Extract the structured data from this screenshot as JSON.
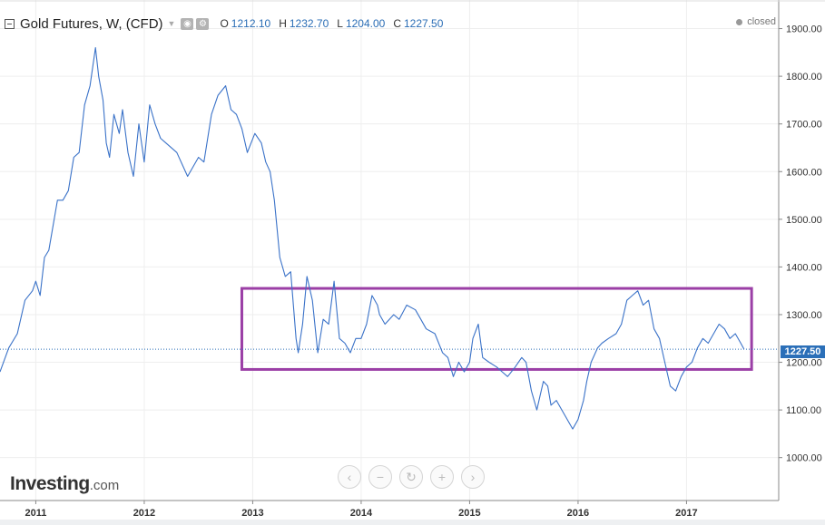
{
  "legend": {
    "title": "Gold Futures, W, (CFD)",
    "o_label": "O",
    "o_value": "1212.10",
    "h_label": "H",
    "h_value": "1232.70",
    "l_label": "L",
    "l_value": "1204.00",
    "c_label": "C",
    "c_value": "1227.50"
  },
  "status": "closed",
  "last_price_label": "1227.50",
  "branding": {
    "name": "Investing",
    "suffix": ".com"
  },
  "nav_icons": [
    "chevron-left-icon",
    "zoom-out-icon",
    "reset-icon",
    "zoom-in-icon",
    "chevron-right-icon"
  ],
  "colors": {
    "line": "#3a72c8",
    "price_tag": "#2b6fb8",
    "highlight_box": "#9b3fa6",
    "grid": "#eeeeee"
  },
  "chart_data": {
    "type": "line",
    "title": "Gold Futures, W, (CFD)",
    "xlabel": "",
    "ylabel": "",
    "ylim": [
      910,
      1960
    ],
    "xlim": [
      2010.67,
      2017.85
    ],
    "y_ticks": [
      "1000.00",
      "1100.00",
      "1200.00",
      "1300.00",
      "1400.00",
      "1500.00",
      "1600.00",
      "1700.00",
      "1800.00",
      "1900.00"
    ],
    "x_ticks": [
      "2011",
      "2012",
      "2013",
      "2014",
      "2015",
      "2016",
      "2017"
    ],
    "grid": true,
    "last_value": 1227.5,
    "highlight_range": {
      "x": [
        2012.9,
        2017.6
      ],
      "y": [
        1185,
        1355
      ]
    },
    "series": [
      {
        "x": [
          2010.67,
          2010.75,
          2010.83,
          2010.9,
          2010.97,
          2011.0,
          2011.04,
          2011.08,
          2011.12,
          2011.17,
          2011.2,
          2011.25,
          2011.3,
          2011.35,
          2011.4,
          2011.45,
          2011.5,
          2011.55,
          2011.58,
          2011.62,
          2011.65,
          2011.68,
          2011.72,
          2011.77,
          2011.8,
          2011.85,
          2011.9,
          2011.95,
          2012.0,
          2012.05,
          2012.1,
          2012.15,
          2012.2,
          2012.3,
          2012.4,
          2012.5,
          2012.55,
          2012.62,
          2012.68,
          2012.75,
          2012.8,
          2012.85,
          2012.9,
          2012.95,
          2013.02,
          2013.08,
          2013.12,
          2013.16,
          2013.2,
          2013.25,
          2013.3,
          2013.35,
          2013.4,
          2013.42,
          2013.46,
          2013.5,
          2013.55,
          2013.6,
          2013.65,
          2013.7,
          2013.75,
          2013.8,
          2013.85,
          2013.9,
          2013.95,
          2014.0,
          2014.05,
          2014.1,
          2014.15,
          2014.17,
          2014.22,
          2014.3,
          2014.35,
          2014.42,
          2014.5,
          2014.55,
          2014.6,
          2014.68,
          2014.75,
          2014.8,
          2014.85,
          2014.9,
          2014.95,
          2015.0,
          2015.03,
          2015.08,
          2015.12,
          2015.18,
          2015.25,
          2015.3,
          2015.35,
          2015.42,
          2015.48,
          2015.52,
          2015.57,
          2015.62,
          2015.65,
          2015.68,
          2015.72,
          2015.75,
          2015.8,
          2015.85,
          2015.9,
          2015.95,
          2016.0,
          2016.05,
          2016.08,
          2016.12,
          2016.18,
          2016.22,
          2016.28,
          2016.35,
          2016.4,
          2016.45,
          2016.5,
          2016.55,
          2016.6,
          2016.65,
          2016.7,
          2016.75,
          2016.8,
          2016.85,
          2016.9,
          2016.95,
          2017.0,
          2017.05,
          2017.1,
          2017.15,
          2017.2,
          2017.25,
          2017.3,
          2017.35,
          2017.4,
          2017.45,
          2017.5,
          2017.53
        ],
        "y": [
          1180,
          1230,
          1260,
          1330,
          1350,
          1370,
          1340,
          1420,
          1435,
          1500,
          1540,
          1540,
          1560,
          1630,
          1640,
          1740,
          1780,
          1860,
          1800,
          1750,
          1660,
          1630,
          1720,
          1680,
          1730,
          1640,
          1590,
          1700,
          1620,
          1740,
          1700,
          1670,
          1660,
          1640,
          1590,
          1630,
          1620,
          1720,
          1760,
          1780,
          1730,
          1720,
          1690,
          1640,
          1680,
          1660,
          1620,
          1600,
          1540,
          1420,
          1380,
          1390,
          1250,
          1220,
          1280,
          1380,
          1330,
          1220,
          1290,
          1280,
          1370,
          1250,
          1240,
          1220,
          1250,
          1250,
          1280,
          1340,
          1320,
          1300,
          1280,
          1300,
          1290,
          1320,
          1310,
          1290,
          1270,
          1260,
          1220,
          1210,
          1170,
          1200,
          1180,
          1200,
          1250,
          1280,
          1210,
          1200,
          1190,
          1180,
          1170,
          1190,
          1210,
          1200,
          1140,
          1100,
          1130,
          1160,
          1150,
          1110,
          1120,
          1100,
          1080,
          1060,
          1080,
          1120,
          1160,
          1200,
          1230,
          1240,
          1250,
          1260,
          1280,
          1330,
          1340,
          1350,
          1320,
          1330,
          1270,
          1250,
          1200,
          1150,
          1140,
          1170,
          1190,
          1200,
          1230,
          1250,
          1240,
          1260,
          1280,
          1270,
          1250,
          1260,
          1240,
          1227.5
        ]
      }
    ]
  }
}
